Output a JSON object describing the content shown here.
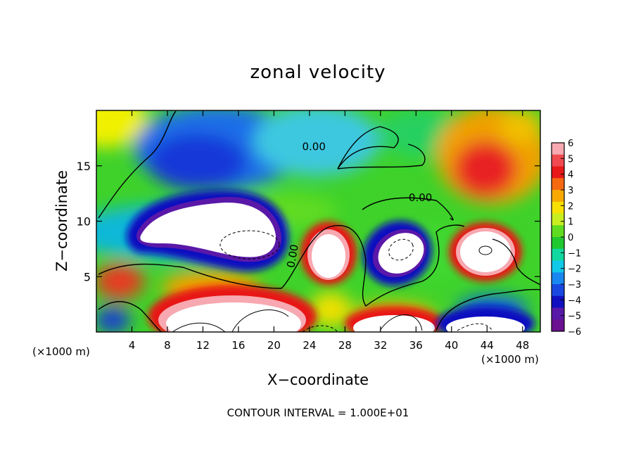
{
  "chart_data": {
    "type": "heatmap",
    "title": "zonal velocity",
    "xlabel": "X−coordinate",
    "ylabel": "Z−coordinate",
    "x_unit_left": "(×1000 m)",
    "x_unit_right": "(×1000 m)",
    "footer": "CONTOUR INTERVAL = 1.000E+01",
    "xlim": [
      0,
      50
    ],
    "ylim": [
      0,
      20
    ],
    "x_ticks": [
      4,
      8,
      12,
      16,
      20,
      24,
      28,
      32,
      36,
      40,
      44,
      48
    ],
    "y_ticks": [
      5,
      10,
      15
    ],
    "colorbar": {
      "ticks": [
        "6",
        "5",
        "4",
        "3",
        "2",
        "1",
        "0",
        "−1",
        "−2",
        "−3",
        "−4",
        "−5",
        "−6"
      ],
      "range": [
        -6,
        6
      ],
      "colors": [
        "#f7a8b0",
        "#f04a50",
        "#e81818",
        "#f56a10",
        "#f8a800",
        "#f8e000",
        "#c8ee20",
        "#60dc20",
        "#20c830",
        "#10d8a0",
        "#10c8e8",
        "#1888f0",
        "#1848e0",
        "#1010c0",
        "#5818a8",
        "#6a1090"
      ]
    },
    "contour_labels": [
      {
        "text": "0.00",
        "x": 24.5,
        "y": 16.4
      },
      {
        "text": "0.00",
        "x": 36.5,
        "y": 11.8
      },
      {
        "text": "0.00",
        "x": 22.5,
        "y": 6.8
      }
    ],
    "features": [
      {
        "kind": "saturated-negative",
        "x": 12,
        "y": 10,
        "rx": 8,
        "ry": 2.2
      },
      {
        "kind": "saturated-positive",
        "x": 26.5,
        "y": 6.2,
        "rx": 2.3,
        "ry": 2.5
      },
      {
        "kind": "saturated-negative",
        "x": 34,
        "y": 7,
        "rx": 3,
        "ry": 2.3
      },
      {
        "kind": "saturated-positive",
        "x": 42,
        "y": 7.3,
        "rx": 3.2,
        "ry": 2.4
      },
      {
        "kind": "saturated-positive",
        "x": 15.5,
        "y": 1.8,
        "rx": 7,
        "ry": 2
      },
      {
        "kind": "saturated-positive",
        "x": 34,
        "y": 1.2,
        "rx": 5,
        "ry": 1.2
      },
      {
        "kind": "saturated-negative",
        "x": 44,
        "y": 1.0,
        "rx": 4,
        "ry": 1.0
      },
      {
        "kind": "positive-max",
        "x": 43.5,
        "y": 14.5,
        "rx": 5,
        "ry": 4
      },
      {
        "kind": "negative-core",
        "x": 15,
        "y": 15,
        "rx": 7,
        "ry": 4
      }
    ]
  }
}
